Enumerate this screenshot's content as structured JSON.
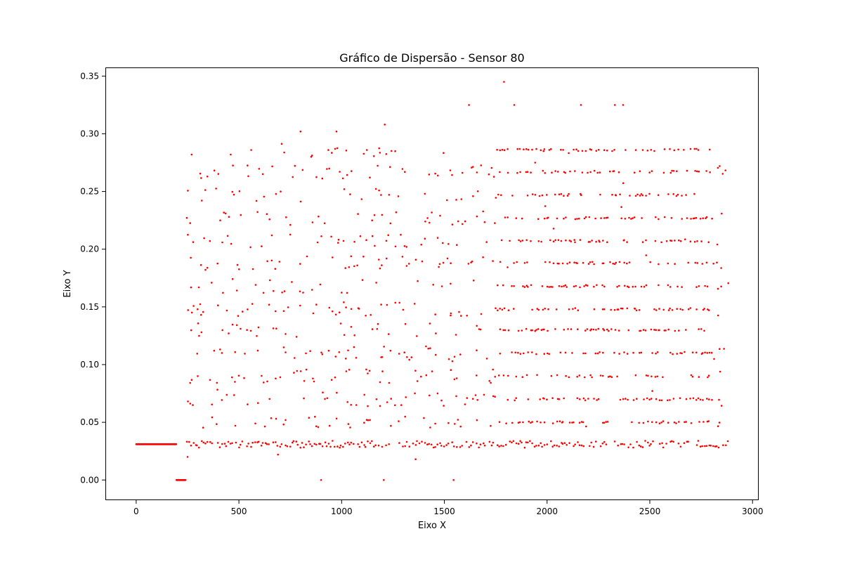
{
  "chart_data": {
    "type": "scatter",
    "title": "Gráfico de Dispersão - Sensor 80",
    "xlabel": "Eixo X",
    "ylabel": "Eixo Y",
    "xlim": [
      -150,
      3030
    ],
    "ylim": [
      -0.0175,
      0.3575
    ],
    "xticks": [
      0,
      500,
      1000,
      1500,
      2000,
      2500,
      3000
    ],
    "xtick_labels": [
      "0",
      "500",
      "1000",
      "1500",
      "2000",
      "2500",
      "3000"
    ],
    "yticks": [
      0.0,
      0.05,
      0.1,
      0.15,
      0.2,
      0.25,
      0.3,
      0.35
    ],
    "ytick_labels": [
      "0.00",
      "0.05",
      "0.10",
      "0.15",
      "0.20",
      "0.25",
      "0.30",
      "0.35"
    ],
    "grid": false,
    "marker_color": "#ff0000",
    "series": [
      {
        "points": {
          "segments": [
            {
              "x_start": 0,
              "x_end": 195,
              "step": 1,
              "y": 0.031
            },
            {
              "x_start": 196,
              "x_end": 240,
              "step": 1,
              "y": 0.0
            }
          ],
          "levels": [
            0.031,
            0.05,
            0.07,
            0.09,
            0.11,
            0.13,
            0.148,
            0.168,
            0.188,
            0.207,
            0.227,
            0.247,
            0.267,
            0.286,
            0.305
          ],
          "x_start": 245,
          "x_end": 2880,
          "x_step": 10,
          "extra": [
            {
              "x": 900,
              "y": 0.0
            },
            {
              "x": 1205,
              "y": 0.0
            },
            {
              "x": 1545,
              "y": 0.0
            },
            {
              "x": 1790,
              "y": 0.345
            },
            {
              "x": 1840,
              "y": 0.325
            },
            {
              "x": 1620,
              "y": 0.325
            },
            {
              "x": 2165,
              "y": 0.325
            },
            {
              "x": 2330,
              "y": 0.325
            },
            {
              "x": 2370,
              "y": 0.325
            },
            {
              "x": 800,
              "y": 0.302
            },
            {
              "x": 975,
              "y": 0.302
            },
            {
              "x": 1210,
              "y": 0.308
            },
            {
              "x": 270,
              "y": 0.282
            },
            {
              "x": 460,
              "y": 0.282
            },
            {
              "x": 560,
              "y": 0.286
            },
            {
              "x": 250,
              "y": 0.02
            },
            {
              "x": 1360,
              "y": 0.018
            },
            {
              "x": 690,
              "y": 0.022
            }
          ]
        }
      }
    ]
  }
}
